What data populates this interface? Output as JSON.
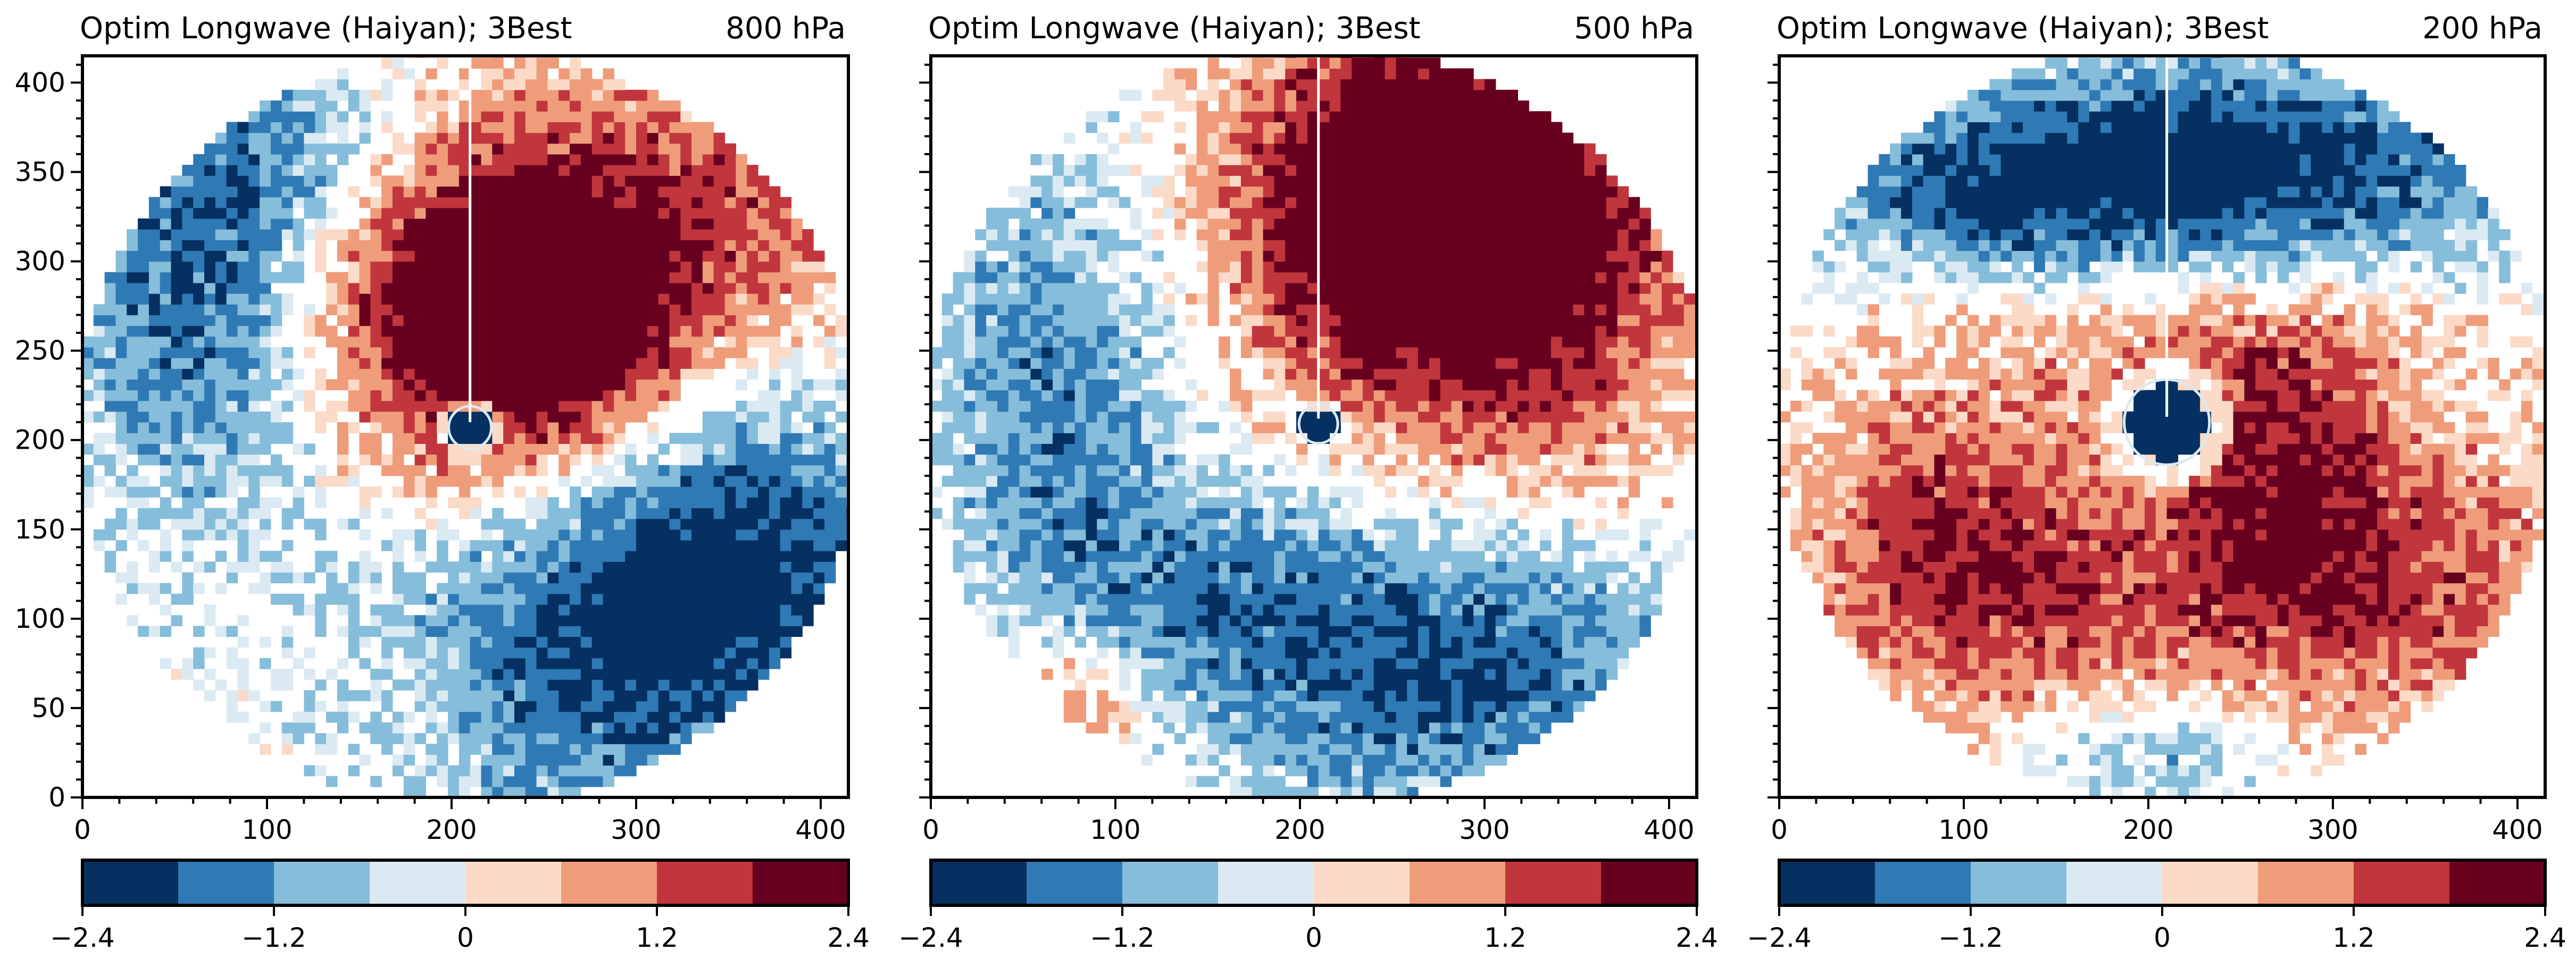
{
  "chart_data": [
    {
      "type": "heatmap",
      "title": "Optim Longwave (Haiyan); 3Best",
      "level_label": "800 hPa",
      "xlim": [
        0,
        415
      ],
      "ylim": [
        0,
        415
      ],
      "xticks": [
        0,
        100,
        200,
        300,
        400
      ],
      "yticks": [
        0,
        50,
        100,
        150,
        200,
        250,
        300,
        350,
        400
      ],
      "center": [
        210,
        207
      ],
      "domain_radius": 213,
      "eye_radius": 11,
      "eye_value": -2.2,
      "background_value": 0,
      "lobes": [
        {
          "x": 240,
          "y": 260,
          "sx": 60,
          "sy": 60,
          "amp": 3.2
        },
        {
          "x": 330,
          "y": 330,
          "sx": 80,
          "sy": 60,
          "amp": 1.2
        },
        {
          "x": 170,
          "y": 300,
          "sx": 60,
          "sy": 80,
          "amp": 0.8
        },
        {
          "x": 300,
          "y": 90,
          "sx": 85,
          "sy": 70,
          "amp": -2.3
        },
        {
          "x": 370,
          "y": 160,
          "sx": 60,
          "sy": 60,
          "amp": -1.0
        },
        {
          "x": 60,
          "y": 280,
          "sx": 50,
          "sy": 90,
          "amp": -1.7
        },
        {
          "x": 120,
          "y": 360,
          "sx": 50,
          "sy": 40,
          "amp": -1.0
        }
      ]
    },
    {
      "type": "heatmap",
      "title": "Optim Longwave (Haiyan); 3Best",
      "level_label": "500 hPa",
      "xlim": [
        0,
        415
      ],
      "ylim": [
        0,
        415
      ],
      "xticks": [
        0,
        100,
        200,
        300,
        400
      ],
      "yticks": [
        0,
        50,
        100,
        150,
        200,
        250,
        300,
        350,
        400
      ],
      "center": [
        210,
        209
      ],
      "domain_radius": 213,
      "eye_radius": 10,
      "eye_value": -2.3,
      "background_value": 0,
      "lobes": [
        {
          "x": 290,
          "y": 340,
          "sx": 75,
          "sy": 65,
          "amp": 2.8
        },
        {
          "x": 230,
          "y": 310,
          "sx": 50,
          "sy": 70,
          "amp": 1.3
        },
        {
          "x": 330,
          "y": 240,
          "sx": 60,
          "sy": 60,
          "amp": 1.2
        },
        {
          "x": 270,
          "y": 70,
          "sx": 90,
          "sy": 55,
          "amp": -2.0
        },
        {
          "x": 60,
          "y": 230,
          "sx": 45,
          "sy": 85,
          "amp": -1.4
        },
        {
          "x": 130,
          "y": 120,
          "sx": 60,
          "sy": 45,
          "amp": -1.0
        },
        {
          "x": 70,
          "y": 50,
          "sx": 35,
          "sy": 30,
          "amp": 1.2
        }
      ]
    },
    {
      "type": "heatmap",
      "title": "Optim Longwave (Haiyan); 3Best",
      "level_label": "200 hPa",
      "xlim": [
        0,
        415
      ],
      "ylim": [
        0,
        415
      ],
      "xticks": [
        0,
        100,
        200,
        300,
        400
      ],
      "yticks": [
        0,
        50,
        100,
        150,
        200,
        250,
        300,
        350,
        400
      ],
      "center": [
        210,
        210
      ],
      "domain_radius": 213,
      "eye_radius": 22,
      "eye_value": -2.1,
      "background_value": 0,
      "lobes": [
        {
          "x": 230,
          "y": 350,
          "sx": 110,
          "sy": 40,
          "amp": -2.6
        },
        {
          "x": 100,
          "y": 330,
          "sx": 50,
          "sy": 30,
          "amp": -1.0
        },
        {
          "x": 90,
          "y": 140,
          "sx": 60,
          "sy": 60,
          "amp": 1.6
        },
        {
          "x": 270,
          "y": 180,
          "sx": 40,
          "sy": 60,
          "amp": 1.6
        },
        {
          "x": 350,
          "y": 120,
          "sx": 60,
          "sy": 60,
          "amp": 1.3
        },
        {
          "x": 200,
          "y": 110,
          "sx": 80,
          "sy": 45,
          "amp": 1.0
        },
        {
          "x": 210,
          "y": 250,
          "sx": 100,
          "sy": 30,
          "amp": 0.7
        },
        {
          "x": 200,
          "y": 20,
          "sx": 40,
          "sy": 20,
          "amp": -1.0
        }
      ]
    }
  ],
  "colorbar": {
    "boundaries": [
      -2.4,
      -1.8,
      -1.2,
      -0.6,
      0,
      0.6,
      1.2,
      1.8,
      2.4
    ],
    "colors": [
      "#053061",
      "#2f79b5",
      "#86bdda",
      "#dbeaf2",
      "#fbdac8",
      "#ef9c7b",
      "#c0363c",
      "#67001f"
    ],
    "tick_values": [
      -2.4,
      -1.2,
      0,
      1.2,
      2.4
    ],
    "tick_labels": [
      "−2.4",
      "−1.2",
      "0",
      "1.2",
      "2.4"
    ]
  }
}
